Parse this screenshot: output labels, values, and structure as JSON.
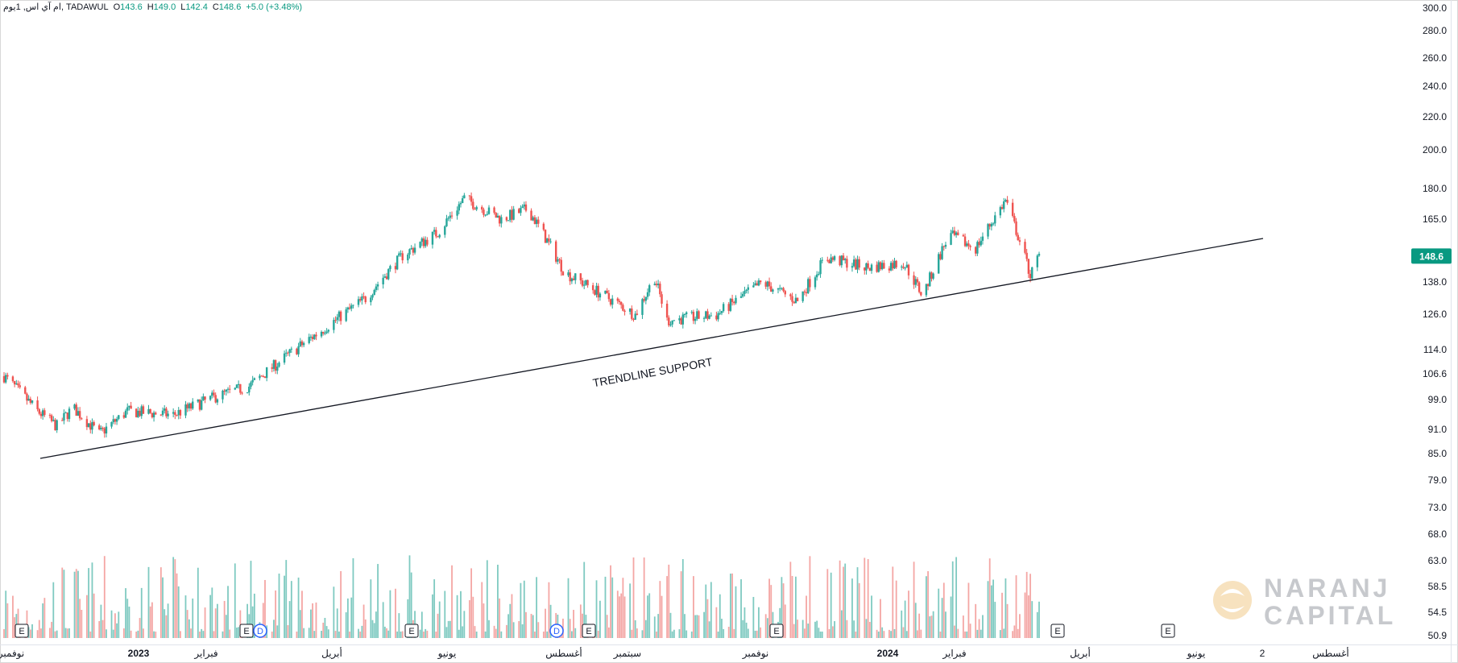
{
  "header": {
    "symbol": "ام آي اس, 1يوم, TADAWUL",
    "o_label": "O",
    "o_value": "143.6",
    "h_label": "H",
    "h_value": "149.0",
    "l_label": "L",
    "l_value": "142.4",
    "c_label": "C",
    "c_value": "148.6",
    "change": "+5.0 (+3.48%)"
  },
  "price_axis": {
    "ticks": [
      "300.0",
      "280.0",
      "260.0",
      "240.0",
      "220.0",
      "200.0",
      "180.0",
      "165.0",
      "138.0",
      "126.0",
      "114.0",
      "106.6",
      "99.0",
      "91.0",
      "85.0",
      "79.0",
      "73.0",
      "68.0",
      "63.0",
      "58.5",
      "54.5",
      "50.9"
    ],
    "current_price": "148.6",
    "scale": "log"
  },
  "time_axis": {
    "labels": [
      "نوفمبر",
      "2023",
      "فبراير",
      "أبريل",
      "يونيو",
      "أغسطس",
      "سبتمبر",
      "نوفمبر",
      "2024",
      "فبراير",
      "أبريل",
      "يونيو",
      "2",
      "أغسطس"
    ]
  },
  "annotations": {
    "trendline_label": "TRENDLINE SUPPORT"
  },
  "markers": {
    "earnings": "E",
    "dividend": "D"
  },
  "watermark": {
    "line1": "NARANJ",
    "line2": "CAPITAL"
  },
  "colors": {
    "up": "#26a69a",
    "down": "#ef5350",
    "volume_up": "#7fcac1",
    "volume_down": "#f4a6a4",
    "price_badge": "#089981",
    "trendline": "#131722",
    "watermark": "#c7c9cd",
    "watermark_logo": "#f2d19c",
    "dividend": "#2962ff"
  },
  "chart_data": {
    "type": "candlestick",
    "title": "",
    "x_range": [
      "2022-11",
      "2024-08"
    ],
    "y_scale": "log",
    "ylim": [
      50.9,
      300.0
    ],
    "last": {
      "open": 143.6,
      "high": 149.0,
      "low": 142.4,
      "close": 148.6,
      "change": 5.0,
      "change_pct": 3.48
    },
    "price_path_approx": [
      {
        "date": "2022-11-01",
        "close": 106
      },
      {
        "date": "2022-11-20",
        "close": 96
      },
      {
        "date": "2022-12-01",
        "close": 92
      },
      {
        "date": "2022-12-10",
        "close": 97
      },
      {
        "date": "2022-12-25",
        "close": 90
      },
      {
        "date": "2023-01-10",
        "close": 96
      },
      {
        "date": "2023-02-05",
        "close": 95
      },
      {
        "date": "2023-03-01",
        "close": 100
      },
      {
        "date": "2023-03-20",
        "close": 103
      },
      {
        "date": "2023-04-10",
        "close": 112
      },
      {
        "date": "2023-05-01",
        "close": 121
      },
      {
        "date": "2023-05-25",
        "close": 132
      },
      {
        "date": "2023-06-15",
        "close": 149
      },
      {
        "date": "2023-07-05",
        "close": 159
      },
      {
        "date": "2023-07-20",
        "close": 175
      },
      {
        "date": "2023-08-10",
        "close": 165
      },
      {
        "date": "2023-08-25",
        "close": 170
      },
      {
        "date": "2023-09-15",
        "close": 142
      },
      {
        "date": "2023-10-10",
        "close": 132
      },
      {
        "date": "2023-10-25",
        "close": 126
      },
      {
        "date": "2023-11-05",
        "close": 140
      },
      {
        "date": "2023-11-12",
        "close": 124
      },
      {
        "date": "2023-12-10",
        "close": 126
      },
      {
        "date": "2024-01-05",
        "close": 138
      },
      {
        "date": "2024-01-25",
        "close": 131
      },
      {
        "date": "2024-02-10",
        "close": 148
      },
      {
        "date": "2024-03-05",
        "close": 144
      },
      {
        "date": "2024-03-25",
        "close": 146
      },
      {
        "date": "2024-04-05",
        "close": 133
      },
      {
        "date": "2024-04-20",
        "close": 158
      },
      {
        "date": "2024-05-05",
        "close": 152
      },
      {
        "date": "2024-05-22",
        "close": 174
      },
      {
        "date": "2024-06-05",
        "close": 141
      },
      {
        "date": "2024-06-10",
        "close": 148.6
      }
    ],
    "trendline": [
      {
        "date": "2022-11-20",
        "price": 86
      },
      {
        "date": "2024-07-20",
        "price": 146
      }
    ],
    "earnings_dates": [
      "2022-11-15",
      "2023-02-25",
      "2023-05-05",
      "2023-08-05",
      "2023-11-03",
      "2024-04-12",
      "2024-06-08"
    ],
    "dividend_dates": [
      "2023-02-27",
      "2023-08-01"
    ]
  }
}
